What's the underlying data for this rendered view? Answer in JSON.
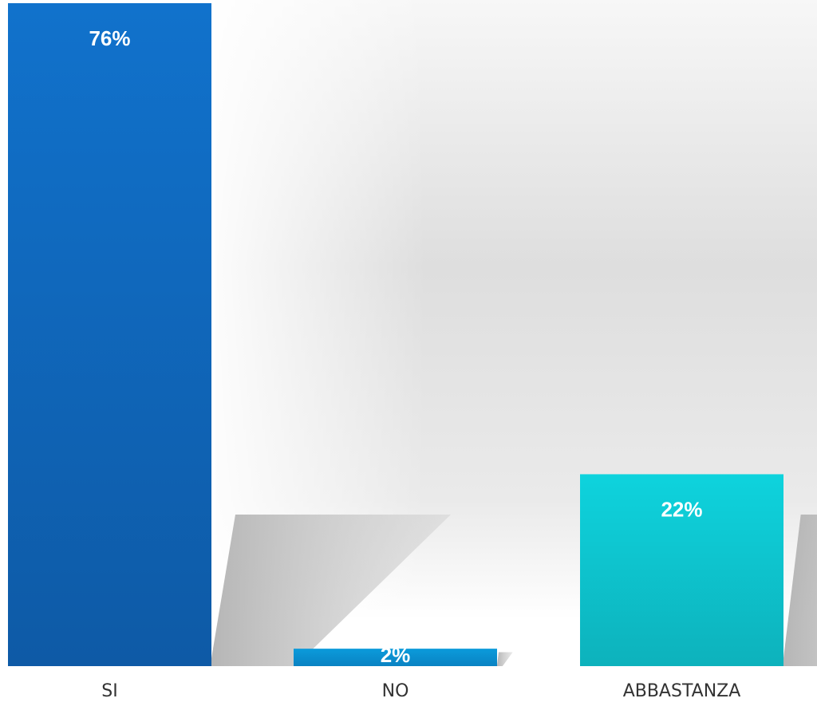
{
  "chart_data": {
    "type": "bar",
    "categories": [
      "SI",
      "NO",
      "ABBASTANZA"
    ],
    "values": [
      76,
      2,
      22
    ],
    "data_labels": [
      "76%",
      "2%",
      "22%"
    ],
    "ylim": [
      0,
      76
    ],
    "grid": false,
    "legend": "none",
    "colors": {
      "si_top": "#1172CC",
      "si_bottom": "#0E5AA6",
      "no_top": "#0B9BDB",
      "no_bottom": "#0A82C2",
      "abbastanza_top": "#0ED3DD",
      "abbastanza_bottom": "#0DB2BC",
      "shadow": "#BEBEBE"
    }
  }
}
